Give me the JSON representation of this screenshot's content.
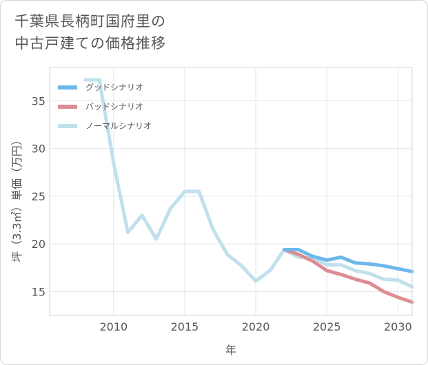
{
  "title_line1": "千葉県長柄町国府里の",
  "title_line2": "中古戸建ての価格推移",
  "chart_data": {
    "type": "line",
    "xlabel": "年",
    "ylabel": "坪（3.3㎡）単価（万円）",
    "xlim": [
      2005.5,
      2031
    ],
    "ylim": [
      12.5,
      38.5
    ],
    "xticks": [
      2010,
      2015,
      2020,
      2025,
      2030
    ],
    "yticks": [
      15,
      20,
      25,
      30,
      35
    ],
    "grid": true,
    "legend_position": "top-left",
    "series": [
      {
        "name": "グッドシナリオ",
        "color": "#6cb8ea",
        "x": [
          2022,
          2023,
          2024,
          2025,
          2026,
          2027,
          2028,
          2029,
          2030,
          2031
        ],
        "y": [
          19.4,
          19.4,
          18.7,
          18.3,
          18.6,
          18.0,
          17.9,
          17.7,
          17.4,
          17.1
        ]
      },
      {
        "name": "バッドシナリオ",
        "color": "#de8c93",
        "x": [
          2022,
          2023,
          2024,
          2025,
          2026,
          2027,
          2028,
          2029,
          2030,
          2031
        ],
        "y": [
          19.4,
          18.9,
          18.2,
          17.2,
          16.8,
          16.3,
          15.9,
          15.0,
          14.4,
          13.9
        ]
      },
      {
        "name": "ノーマルシナリオ",
        "color": "#bfe0ec",
        "x": [
          2008,
          2009,
          2010,
          2011,
          2012,
          2013,
          2014,
          2015,
          2016,
          2017,
          2018,
          2019,
          2020,
          2021,
          2022,
          2023,
          2024,
          2025,
          2026,
          2027,
          2028,
          2029,
          2030,
          2031
        ],
        "y": [
          37.2,
          37.2,
          28.5,
          21.2,
          23.0,
          20.5,
          23.7,
          25.5,
          25.5,
          21.5,
          18.9,
          17.7,
          16.1,
          17.2,
          19.4,
          18.6,
          18.5,
          17.8,
          17.8,
          17.2,
          16.9,
          16.3,
          16.2,
          15.5
        ]
      }
    ]
  }
}
